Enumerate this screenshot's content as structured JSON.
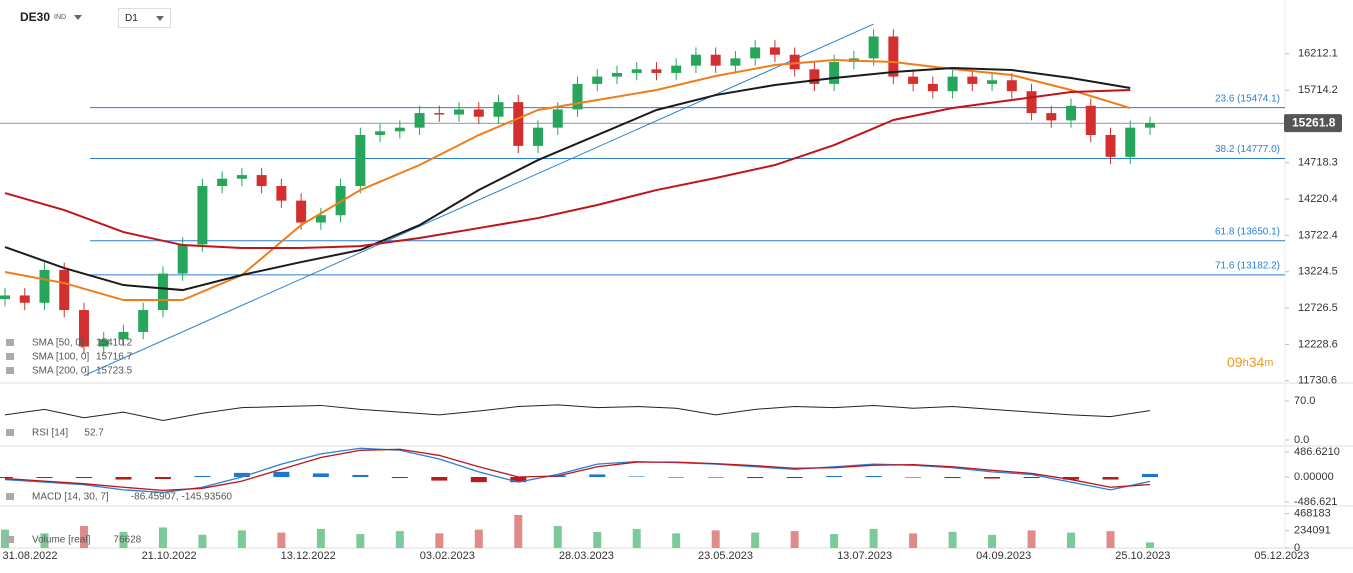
{
  "toolbar": {
    "symbol": "DE30",
    "badge": "IND",
    "timeframe": "D1"
  },
  "time_axis": [
    "31.08.2022",
    "21.10.2022",
    "13.12.2022",
    "03.02.2023",
    "28.03.2023",
    "23.05.2023",
    "13.07.2023",
    "04.09.2023",
    "25.10.2023",
    "05.12.2023"
  ],
  "timer": {
    "hours": "09",
    "h": "h",
    "minutes": "34",
    "m": "m"
  },
  "chart_data": [
    {
      "type": "candlestick",
      "ylim": [
        11700,
        16950
      ],
      "yticks": [
        16212.1,
        15714.2,
        14718.3,
        14220.4,
        13722.4,
        13224.5,
        12726.5,
        12228.6,
        11730.6
      ],
      "up_color": "#26a65b",
      "down_color": "#d32f2f",
      "candles": [
        [
          12850,
          13000,
          12750,
          12900
        ],
        [
          12900,
          13000,
          12700,
          12800
        ],
        [
          12800,
          13350,
          12700,
          13250
        ],
        [
          13250,
          13350,
          12600,
          12700
        ],
        [
          12700,
          12800,
          12100,
          12200
        ],
        [
          12200,
          12400,
          12100,
          12300
        ],
        [
          12300,
          12500,
          12200,
          12400
        ],
        [
          12400,
          12800,
          12300,
          12700
        ],
        [
          12700,
          13300,
          12600,
          13200
        ],
        [
          13200,
          13700,
          13100,
          13600
        ],
        [
          13600,
          14500,
          13500,
          14400
        ],
        [
          14400,
          14600,
          14300,
          14500
        ],
        [
          14500,
          14650,
          14400,
          14550
        ],
        [
          14550,
          14650,
          14300,
          14400
        ],
        [
          14400,
          14500,
          14100,
          14200
        ],
        [
          14200,
          14300,
          13800,
          13900
        ],
        [
          13900,
          14100,
          13800,
          14000
        ],
        [
          14000,
          14500,
          13900,
          14400
        ],
        [
          14400,
          15200,
          14300,
          15100
        ],
        [
          15100,
          15250,
          15000,
          15150
        ],
        [
          15150,
          15300,
          15050,
          15200
        ],
        [
          15200,
          15500,
          15100,
          15400
        ],
        [
          15400,
          15500,
          15280,
          15380
        ],
        [
          15380,
          15550,
          15280,
          15450
        ],
        [
          15450,
          15550,
          15250,
          15350
        ],
        [
          15350,
          15650,
          15250,
          15550
        ],
        [
          15550,
          15650,
          14850,
          14950
        ],
        [
          14950,
          15300,
          14850,
          15200
        ],
        [
          15200,
          15550,
          15100,
          15450
        ],
        [
          15450,
          15900,
          15350,
          15800
        ],
        [
          15800,
          16000,
          15700,
          15900
        ],
        [
          15900,
          16050,
          15800,
          15950
        ],
        [
          15950,
          16100,
          15850,
          16000
        ],
        [
          16000,
          16100,
          15850,
          15950
        ],
        [
          15950,
          16150,
          15850,
          16050
        ],
        [
          16050,
          16300,
          15950,
          16200
        ],
        [
          16200,
          16300,
          15950,
          16050
        ],
        [
          16050,
          16250,
          15950,
          16150
        ],
        [
          16150,
          16400,
          16050,
          16300
        ],
        [
          16300,
          16400,
          16100,
          16200
        ],
        [
          16200,
          16300,
          15900,
          16000
        ],
        [
          16000,
          16100,
          15700,
          15800
        ],
        [
          15800,
          16200,
          15700,
          16100
        ],
        [
          16100,
          16250,
          16000,
          16150
        ],
        [
          16150,
          16550,
          16050,
          16450
        ],
        [
          16450,
          16550,
          15800,
          15900
        ],
        [
          15900,
          16000,
          15700,
          15800
        ],
        [
          15800,
          15900,
          15600,
          15700
        ],
        [
          15700,
          16000,
          15600,
          15900
        ],
        [
          15900,
          16000,
          15700,
          15800
        ],
        [
          15800,
          15950,
          15700,
          15850
        ],
        [
          15850,
          15950,
          15600,
          15700
        ],
        [
          15700,
          15800,
          15300,
          15400
        ],
        [
          15400,
          15500,
          15200,
          15300
        ],
        [
          15300,
          15600,
          15200,
          15500
        ],
        [
          15500,
          15600,
          15000,
          15100
        ],
        [
          15100,
          15200,
          14700,
          14800
        ],
        [
          14800,
          15300,
          14700,
          15200
        ],
        [
          15200,
          15350,
          15100,
          15262
        ]
      ],
      "sma_x": [
        0,
        3,
        6,
        9,
        12,
        15,
        18,
        21,
        24,
        27,
        30,
        33,
        36,
        39,
        42,
        45,
        48,
        51,
        54,
        57
      ],
      "series": [
        {
          "name": "SMA [50, 0]",
          "last": 15410.2,
          "color": "#ef7d1a",
          "values": [
            13221,
            13070,
            12837,
            12837,
            13180,
            13865,
            14345,
            14688,
            15099,
            15442,
            15579,
            15716,
            15908,
            16059,
            16127,
            16100,
            16004,
            15922,
            15716,
            15469
          ]
        },
        {
          "name": "SMA [100, 0]",
          "last": 15716.7,
          "color": "#1b1b1b",
          "values": [
            13564,
            13276,
            13043,
            12974,
            13180,
            13358,
            13523,
            13865,
            14345,
            14756,
            15099,
            15442,
            15647,
            15785,
            15881,
            15963,
            16018,
            15990,
            15881,
            15744
          ]
        },
        {
          "name": "SMA [200, 0]",
          "last": 15723.5,
          "color": "#c0141c",
          "values": [
            14304,
            14071,
            13769,
            13591,
            13550,
            13550,
            13577,
            13687,
            13824,
            13961,
            14140,
            14345,
            14510,
            14688,
            14962,
            15305,
            15469,
            15579,
            15689,
            15716
          ]
        }
      ],
      "fib_color": "#2a7fd4",
      "fib_levels": [
        {
          "value": 15474.1,
          "label": "23.6 (15474.1)"
        },
        {
          "value": 14777.0,
          "label": "38.2 (14777.0)"
        },
        {
          "value": 13650.1,
          "label": "61.8 (13650.1)"
        },
        {
          "value": 13182.2,
          "label": "71.6 (13182.2)"
        }
      ],
      "trendline": {
        "from": [
          4,
          11800
        ],
        "to": [
          44,
          16620
        ]
      },
      "last_price": 15261.8
    },
    {
      "type": "line",
      "name": "RSI [14]",
      "last": 52.7,
      "color": "#222",
      "ylim": [
        -9,
        93.3
      ],
      "yticks": [
        {
          "value": 70,
          "label": "70.0"
        },
        {
          "value": 0,
          "label": "0.0"
        }
      ],
      "values": [
        45,
        55,
        40,
        50,
        35,
        48,
        58,
        60,
        62,
        55,
        50,
        45,
        52,
        60,
        63,
        58,
        60,
        57,
        45,
        55,
        60,
        58,
        62,
        57,
        60,
        55,
        50,
        45,
        42,
        52.7
      ]
    },
    {
      "type": "macd",
      "name": "MACD [14, 30, 7]",
      "last": "-86.45907, -145.93560",
      "ylim": [
        -545,
        584
      ],
      "yticks": [
        {
          "value": 486.621,
          "label": "486.6210"
        },
        {
          "value": 0,
          "label": "0.00000"
        },
        -486.621
      ],
      "series": [
        {
          "name": "MACD",
          "color": "#2a7fd4",
          "values": [
            -50,
            -100,
            -150,
            -250,
            -300,
            -200,
            0,
            250,
            450,
            560,
            520,
            350,
            100,
            -100,
            50,
            250,
            300,
            280,
            250,
            200,
            150,
            200,
            250,
            230,
            180,
            100,
            50,
            -100,
            -250,
            -86
          ]
        },
        {
          "name": "Signal",
          "color": "#c0141c",
          "values": [
            -30,
            -80,
            -130,
            -200,
            -260,
            -220,
            -80,
            150,
            380,
            520,
            540,
            420,
            200,
            0,
            20,
            200,
            290,
            290,
            260,
            220,
            170,
            180,
            230,
            240,
            200,
            130,
            70,
            -50,
            -200,
            -146
          ]
        }
      ],
      "histogram": [
        -20,
        -20,
        -20,
        -50,
        -40,
        20,
        80,
        100,
        70,
        40,
        -20,
        -70,
        -100,
        -100,
        30,
        50,
        10,
        -10,
        -10,
        -20,
        -20,
        20,
        20,
        -10,
        -20,
        -30,
        -20,
        -50,
        -50,
        60
      ],
      "pos_color": "#1f77c9",
      "neg_color": "#b71c1c"
    },
    {
      "type": "volume",
      "name": "Volume [real]",
      "last": 76628,
      "ylim": [
        0,
        545000
      ],
      "yticks": [
        468183,
        234091,
        0
      ],
      "values": [
        250000,
        200000,
        300000,
        220000,
        280000,
        180000,
        240000,
        210000,
        260000,
        190000,
        230000,
        200000,
        250000,
        450000,
        300000,
        220000,
        260000,
        200000,
        240000,
        210000,
        230000,
        190000,
        260000,
        200000,
        220000,
        180000,
        240000,
        210000,
        230000,
        76628
      ]
    }
  ]
}
